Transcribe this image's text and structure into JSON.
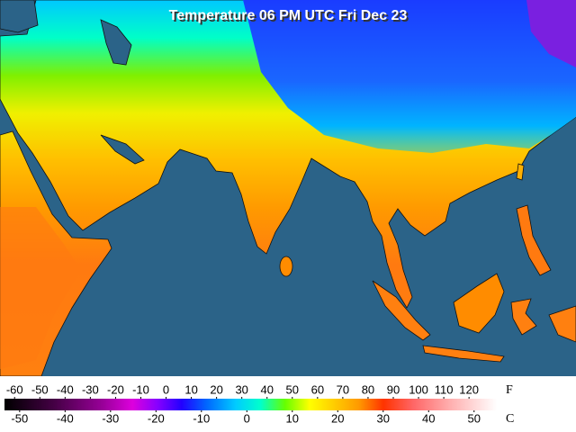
{
  "title": "Temperature 06 PM UTC Fri Dec 23",
  "legend": {
    "f_unit": "F",
    "c_unit": "C",
    "f_lim": [
      -64,
      131
    ],
    "f_ticks": [
      -60,
      -50,
      -40,
      -30,
      -20,
      -10,
      0,
      10,
      20,
      30,
      40,
      50,
      60,
      70,
      80,
      90,
      100,
      110,
      120
    ],
    "c_ticks": [
      -50,
      -40,
      -30,
      -20,
      -10,
      0,
      10,
      20,
      30,
      40,
      50
    ]
  }
}
